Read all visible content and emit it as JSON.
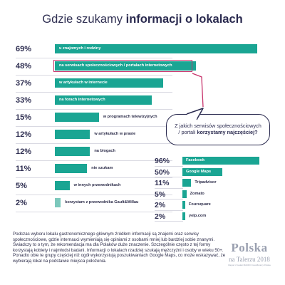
{
  "title": {
    "plain": "Gdzie szukamy ",
    "bold": "informacji o lokalach"
  },
  "bubble": {
    "line1": "Z jakich serwisów społecznościowych",
    "line2": "/ portali ",
    "line2_bold": "korzystamy najczęściej?"
  },
  "paragraph": "Podczas wyboru lokalu gastronomicznego głównym źródłem informacji są znajomi oraz serwisy społecznościowe, gdzie internauci wymieniają się opiniami z osobami mniej lub bardziej sobie znanymi. Świadczy to o tym, że rekomendacja ma dla Polaków duże znaczenie. Szczególnie często z tej formy korzystają kobiety i najmłodsi badani. Informacji o lokalach rzadziej szukają mężczyźni i osoby w wieku 50+. Ponadto obie te grupy częściej niż ogół wykorzystują poszukiwaniach Google Maps, co może wskazywać, że wybierają lokal na podstawie miejsca położenia.",
  "logo": {
    "main": "Polska",
    "sub": "na Talerzu 2018",
    "tiny": "Raport z badań MAKRO Cash&Carry Polska"
  },
  "colors": {
    "bar": "#1aa593",
    "bar_light": "#7cc8bc",
    "highlight": "#c7336b",
    "text": "#2d2d4a"
  },
  "chart_data": [
    {
      "type": "bar",
      "orientation": "horizontal",
      "categories": [
        "u znajomych i rodziny",
        "na serwisach społecznościowych / portalach internetowych",
        "w artykułach w internecie",
        "na forach internetowych",
        "w programach telewizyjnych",
        "w artykułach w prasie",
        "na blogach",
        "nie szukam",
        "w innych przewodnikach",
        "korzystam z przewodnika Gault&Millau"
      ],
      "value_labels": [
        "69%",
        "48%",
        "37%",
        "33%",
        "15%",
        "12%",
        "12%",
        "11%",
        "5%",
        "2%"
      ],
      "values": [
        69,
        48,
        37,
        33,
        15,
        12,
        12,
        11,
        5,
        2
      ],
      "highlighted": "na serwisach społecznościowych / portalach internetowych",
      "xlim": [
        0,
        69
      ]
    },
    {
      "type": "bar",
      "orientation": "horizontal",
      "categories": [
        "Facebook",
        "Google Maps",
        "Tripadvisor",
        "Zomato",
        "Foursquare",
        "yelp.com"
      ],
      "value_labels": [
        "96%",
        "50%",
        "11%",
        "5%",
        "2%",
        "2%"
      ],
      "values": [
        96,
        50,
        11,
        5,
        2,
        2
      ],
      "xlim": [
        0,
        96
      ]
    }
  ]
}
